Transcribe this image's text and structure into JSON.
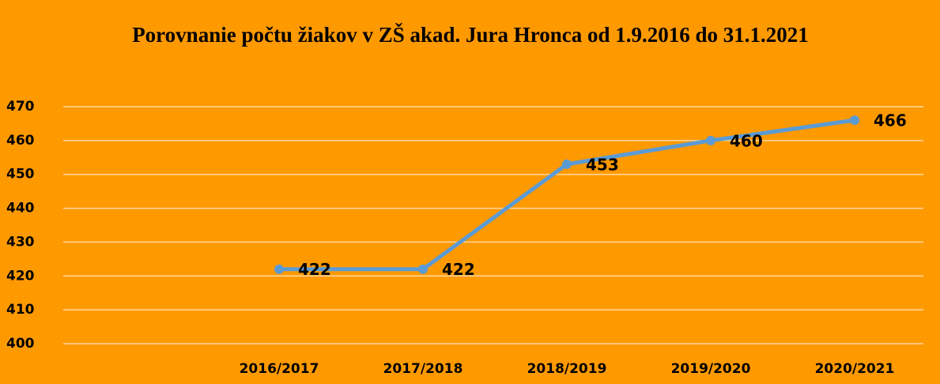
{
  "chart_data": {
    "type": "line",
    "title": "Porovnanie počtu žiakov v ZŠ akad. Jura Hronca od 1.9.2016 do 31.1.2021",
    "categories": [
      null,
      "2016/2017",
      "2017/2018",
      "2018/2019",
      "2019/2020",
      "2020/2021"
    ],
    "values": [
      null,
      422,
      422,
      453,
      460,
      466
    ],
    "color": "#5b9bd5",
    "ylim": [
      400,
      470
    ],
    "yticks": [
      400,
      410,
      420,
      430,
      440,
      450,
      460,
      470
    ],
    "grid": true
  }
}
